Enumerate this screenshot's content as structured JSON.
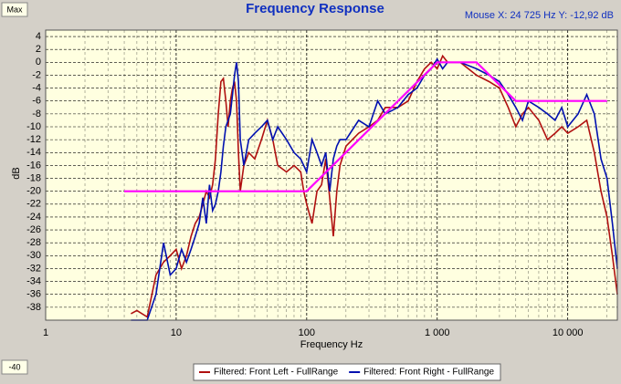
{
  "chart_data": {
    "type": "line",
    "title": "Frequency Response",
    "readout": "Mouse X: 24 725 Hz  Y: -12,92 dB",
    "range_controls": {
      "max": "Max",
      "min": -40
    },
    "x_label": "Frequency Hz",
    "y_label": "dB",
    "log_x": true,
    "grid": true,
    "xlim": [
      1,
      24000
    ],
    "ylim": [
      -40,
      5
    ],
    "xticks": [
      1,
      10,
      100,
      {
        "value": 1000,
        "label": "1 000"
      },
      {
        "value": 10000,
        "label": "10 000"
      }
    ],
    "yticks": [
      4,
      2,
      0,
      -2,
      -4,
      -6,
      -8,
      -10,
      -12,
      -14,
      -16,
      -18,
      -20,
      -22,
      -24,
      -26,
      -28,
      -30,
      -32,
      -34,
      -36,
      -38
    ],
    "x": [
      4.5,
      5,
      6,
      7,
      8,
      9,
      10,
      11,
      12,
      13,
      14,
      15,
      16,
      17,
      18,
      19,
      20,
      21,
      22,
      23,
      24,
      25,
      26,
      27,
      28,
      29,
      30,
      31,
      33,
      36,
      40,
      45,
      50,
      55,
      60,
      70,
      80,
      90,
      95,
      100,
      110,
      120,
      130,
      140,
      150,
      160,
      170,
      180,
      200,
      250,
      300,
      350,
      400,
      500,
      600,
      700,
      800,
      900,
      1000,
      1100,
      1200,
      1500,
      2000,
      2500,
      3000,
      3500,
      4000,
      4500,
      5000,
      6000,
      7000,
      8000,
      9000,
      10000,
      12000,
      14000,
      16000,
      18000,
      20000,
      22000,
      24000
    ],
    "series": [
      {
        "name": "Filtered: Front Left - FullRange",
        "color": "#b01010",
        "values": [
          -39,
          -38.5,
          -39.5,
          -33,
          -31,
          -30,
          -29,
          -32,
          -30,
          -27,
          -25,
          -24,
          -22,
          -20,
          -21,
          -19,
          -15,
          -8,
          -3,
          -2.5,
          -6,
          -10,
          -6,
          -4,
          -3,
          -6,
          -14,
          -20,
          -16,
          -14,
          -15,
          -12,
          -9,
          -12,
          -16,
          -17,
          -16,
          -17,
          -20,
          -22,
          -25,
          -20,
          -19,
          -15,
          -21,
          -27,
          -20,
          -16,
          -13,
          -11,
          -10,
          -9,
          -7,
          -7,
          -6,
          -3,
          -1,
          0,
          -1,
          1,
          0,
          0,
          -2,
          -3,
          -4,
          -7,
          -10,
          -8,
          -7,
          -9,
          -12,
          -11,
          -10,
          -11,
          -10,
          -9,
          -14,
          -20,
          -24,
          -30,
          -36
        ]
      },
      {
        "name": "Filtered: Front Right - FullRange",
        "color": "#0010b0",
        "values": [
          -40,
          -40,
          -40,
          -36,
          -28,
          -33,
          -32,
          -29,
          -31,
          -29,
          -27,
          -25,
          -21,
          -25,
          -19,
          -23,
          -22,
          -20,
          -17,
          -13,
          -10,
          -9,
          -8,
          -5,
          -2,
          0,
          -3,
          -12,
          -16,
          -12,
          -11,
          -10,
          -9,
          -12,
          -10,
          -12,
          -14,
          -15,
          -16,
          -17,
          -12,
          -14,
          -16,
          -14,
          -20,
          -15,
          -13,
          -12,
          -12,
          -9,
          -10,
          -6,
          -8,
          -7,
          -5,
          -4,
          -2,
          -1,
          0.5,
          -1,
          0,
          0,
          -1,
          -2,
          -3,
          -5,
          -7,
          -9,
          -6,
          -7,
          -8,
          -9,
          -7,
          -10,
          -8,
          -5,
          -8,
          -15,
          -18,
          -25,
          -32
        ]
      },
      {
        "color": "#ff00ff",
        "x": [
          4,
          100,
          1000,
          2000,
          4000,
          20000
        ],
        "values": [
          -20,
          -20,
          0,
          0,
          -6,
          -6
        ]
      }
    ]
  }
}
